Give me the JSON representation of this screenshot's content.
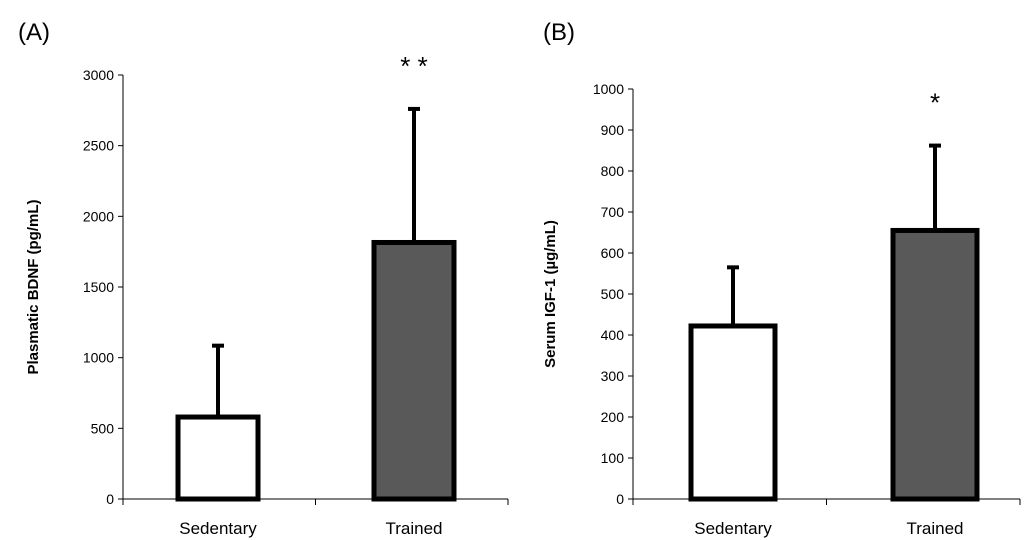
{
  "colors": {
    "sedentary_fill": "#ffffff",
    "trained_fill": "#595959",
    "bar_stroke": "#000000",
    "axis": "#000000"
  },
  "chart_data": [
    {
      "type": "bar",
      "panel_label": "(A)",
      "categories": [
        "Sedentary",
        "Trained"
      ],
      "values": [
        580,
        1815
      ],
      "error_upper": [
        1085,
        2760
      ],
      "significance": [
        "",
        "**"
      ],
      "ylabel": "Plasmatic BDNF (pg/mL)",
      "ylim": [
        0,
        3000
      ],
      "yticks": [
        0,
        500,
        1000,
        1500,
        2000,
        2500,
        3000
      ],
      "ytick_labels": [
        "0",
        "500",
        "1000",
        "1500",
        "2000",
        "2500",
        "3000"
      ],
      "grid": false,
      "legend": "none"
    },
    {
      "type": "bar",
      "panel_label": "(B)",
      "categories": [
        "Sedentary",
        "Trained"
      ],
      "values": [
        422,
        655
      ],
      "error_upper": [
        565,
        862
      ],
      "significance": [
        "",
        "*"
      ],
      "ylabel": "Serum IGF-1 (µg/mL)",
      "ylim": [
        0,
        1000
      ],
      "yticks": [
        0,
        100,
        200,
        300,
        400,
        500,
        600,
        700,
        800,
        900,
        1000
      ],
      "ytick_labels": [
        "0",
        "100",
        "200",
        "300",
        "400",
        "500",
        "600",
        "700",
        "800",
        "900",
        "1000"
      ],
      "grid": false,
      "legend": "none"
    }
  ]
}
